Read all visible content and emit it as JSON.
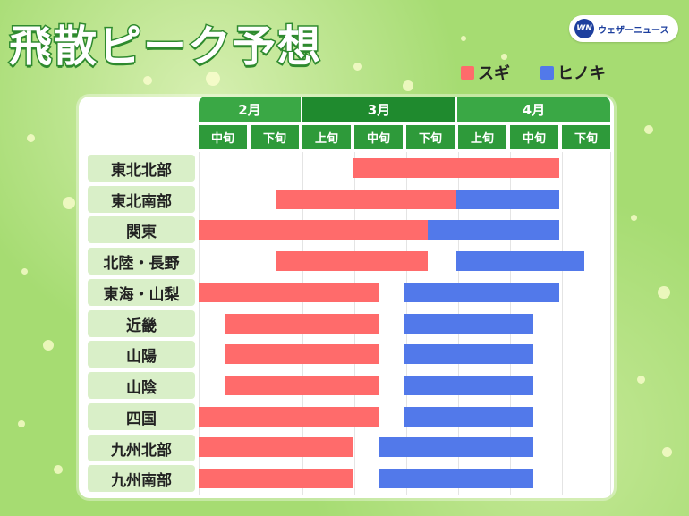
{
  "title": "飛散ピーク予想",
  "brand": {
    "mark": "WN",
    "name": "ウェザーニュース"
  },
  "legend": [
    {
      "label": "スギ",
      "color": "#ff6b6b"
    },
    {
      "label": "ヒノキ",
      "color": "#5279ea"
    }
  ],
  "chart_data": {
    "type": "bar",
    "orientation": "horizontal-range",
    "months": [
      {
        "label": "2月",
        "dekads": [
          "中旬",
          "下旬"
        ]
      },
      {
        "label": "3月",
        "dekads": [
          "上旬",
          "中旬",
          "下旬"
        ]
      },
      {
        "label": "4月",
        "dekads": [
          "上旬",
          "中旬",
          "下旬"
        ]
      }
    ],
    "x_unit": "dekad index (0 = 2月中旬 start, 8 = 4月下旬 end)",
    "xlim": [
      0,
      8
    ],
    "regions": [
      "東北北部",
      "東北南部",
      "関東",
      "北陸・長野",
      "東海・山梨",
      "近畿",
      "山陽",
      "山陰",
      "四国",
      "九州北部",
      "九州南部"
    ],
    "series": [
      {
        "name": "スギ",
        "color": "#ff6b6b",
        "ranges": [
          [
            3.0,
            7.0
          ],
          [
            1.5,
            5.0
          ],
          [
            0.0,
            4.45
          ],
          [
            1.5,
            4.45
          ],
          [
            0.0,
            3.5
          ],
          [
            0.5,
            3.5
          ],
          [
            0.5,
            3.5
          ],
          [
            0.5,
            3.5
          ],
          [
            0.0,
            3.5
          ],
          [
            0.0,
            3.0
          ],
          [
            0.0,
            3.0
          ]
        ]
      },
      {
        "name": "ヒノキ",
        "color": "#5279ea",
        "ranges": [
          null,
          [
            5.0,
            7.0
          ],
          [
            4.45,
            7.0
          ],
          [
            5.0,
            7.5
          ],
          [
            4.0,
            7.0
          ],
          [
            4.0,
            6.5
          ],
          [
            4.0,
            6.5
          ],
          [
            4.0,
            6.5
          ],
          [
            4.0,
            6.5
          ],
          [
            3.5,
            6.5
          ],
          [
            3.5,
            6.5
          ]
        ]
      }
    ]
  }
}
